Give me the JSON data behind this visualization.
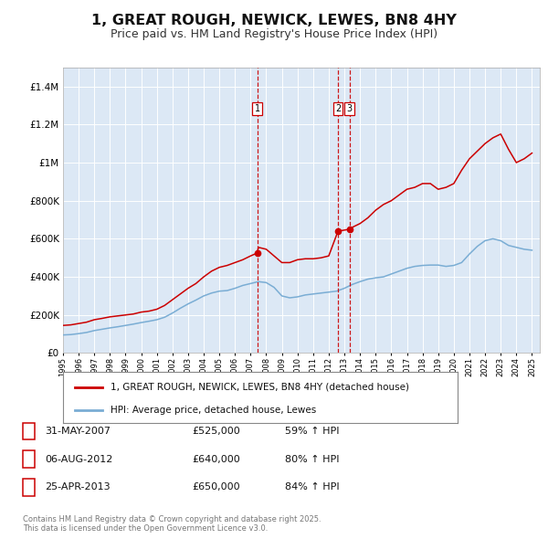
{
  "title": "1, GREAT ROUGH, NEWICK, LEWES, BN8 4HY",
  "subtitle": "Price paid vs. HM Land Registry's House Price Index (HPI)",
  "title_fontsize": 11.5,
  "subtitle_fontsize": 9,
  "background_color": "#ffffff",
  "plot_bg_color": "#dce8f5",
  "grid_color": "#ffffff",
  "ylim": [
    0,
    1500000
  ],
  "yticks": [
    0,
    200000,
    400000,
    600000,
    800000,
    1000000,
    1200000,
    1400000
  ],
  "xmin": 1995.0,
  "xmax": 2025.5,
  "vline1_x": 2007.42,
  "vline2_x": 2012.59,
  "vline3_x": 2013.32,
  "sale1_date": "31-MAY-2007",
  "sale1_price": "£525,000",
  "sale1_hpi": "59% ↑ HPI",
  "sale2_date": "06-AUG-2012",
  "sale2_price": "£640,000",
  "sale2_hpi": "80% ↑ HPI",
  "sale3_date": "25-APR-2013",
  "sale3_price": "£650,000",
  "sale3_hpi": "84% ↑ HPI",
  "red_line_color": "#cc0000",
  "blue_line_color": "#7aadd4",
  "vline_color": "#cc0000",
  "legend_label_red": "1, GREAT ROUGH, NEWICK, LEWES, BN8 4HY (detached house)",
  "legend_label_blue": "HPI: Average price, detached house, Lewes",
  "footer_text": "Contains HM Land Registry data © Crown copyright and database right 2025.\nThis data is licensed under the Open Government Licence v3.0.",
  "red_x": [
    1995.0,
    1995.5,
    1996.0,
    1996.5,
    1997.0,
    1997.5,
    1998.0,
    1998.5,
    1999.0,
    1999.5,
    2000.0,
    2000.5,
    2001.0,
    2001.5,
    2002.0,
    2002.5,
    2003.0,
    2003.5,
    2004.0,
    2004.5,
    2005.0,
    2005.5,
    2006.0,
    2006.5,
    2007.0,
    2007.42,
    2007.5,
    2008.0,
    2008.5,
    2009.0,
    2009.5,
    2010.0,
    2010.5,
    2011.0,
    2011.5,
    2012.0,
    2012.59,
    2013.32,
    2013.5,
    2014.0,
    2014.5,
    2015.0,
    2015.5,
    2016.0,
    2016.5,
    2017.0,
    2017.5,
    2018.0,
    2018.5,
    2019.0,
    2019.5,
    2020.0,
    2020.5,
    2021.0,
    2021.5,
    2022.0,
    2022.5,
    2023.0,
    2023.5,
    2024.0,
    2024.5,
    2025.0
  ],
  "red_y": [
    145000,
    148000,
    155000,
    162000,
    175000,
    182000,
    190000,
    195000,
    200000,
    205000,
    215000,
    220000,
    230000,
    250000,
    280000,
    310000,
    340000,
    365000,
    400000,
    430000,
    450000,
    460000,
    475000,
    490000,
    510000,
    525000,
    555000,
    545000,
    510000,
    475000,
    475000,
    490000,
    495000,
    495000,
    500000,
    510000,
    640000,
    650000,
    660000,
    680000,
    710000,
    750000,
    780000,
    800000,
    830000,
    860000,
    870000,
    890000,
    890000,
    860000,
    870000,
    890000,
    960000,
    1020000,
    1060000,
    1100000,
    1130000,
    1150000,
    1070000,
    1000000,
    1020000,
    1050000
  ],
  "blue_x": [
    1995.0,
    1995.5,
    1996.0,
    1996.5,
    1997.0,
    1997.5,
    1998.0,
    1998.5,
    1999.0,
    1999.5,
    2000.0,
    2000.5,
    2001.0,
    2001.5,
    2002.0,
    2002.5,
    2003.0,
    2003.5,
    2004.0,
    2004.5,
    2005.0,
    2005.5,
    2006.0,
    2006.5,
    2007.0,
    2007.5,
    2008.0,
    2008.5,
    2009.0,
    2009.5,
    2010.0,
    2010.5,
    2011.0,
    2011.5,
    2012.0,
    2012.5,
    2013.0,
    2013.5,
    2014.0,
    2014.5,
    2015.0,
    2015.5,
    2016.0,
    2016.5,
    2017.0,
    2017.5,
    2018.0,
    2018.5,
    2019.0,
    2019.5,
    2020.0,
    2020.5,
    2021.0,
    2021.5,
    2022.0,
    2022.5,
    2023.0,
    2023.5,
    2024.0,
    2024.5,
    2025.0
  ],
  "blue_y": [
    95000,
    97000,
    102000,
    108000,
    118000,
    125000,
    132000,
    138000,
    145000,
    152000,
    160000,
    167000,
    175000,
    188000,
    210000,
    235000,
    258000,
    278000,
    300000,
    315000,
    325000,
    328000,
    340000,
    355000,
    365000,
    375000,
    370000,
    345000,
    300000,
    290000,
    295000,
    305000,
    310000,
    315000,
    320000,
    325000,
    340000,
    360000,
    375000,
    388000,
    395000,
    400000,
    415000,
    430000,
    445000,
    455000,
    460000,
    462000,
    462000,
    455000,
    460000,
    475000,
    520000,
    560000,
    590000,
    600000,
    590000,
    565000,
    555000,
    545000,
    540000
  ]
}
